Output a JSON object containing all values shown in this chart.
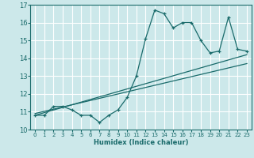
{
  "title": "",
  "xlabel": "Humidex (Indice chaleur)",
  "ylabel": "",
  "bg_color": "#cce8ea",
  "line_color": "#1a6b6b",
  "grid_color": "#ffffff",
  "xlim": [
    -0.5,
    23.5
  ],
  "ylim": [
    10,
    17
  ],
  "yticks": [
    10,
    11,
    12,
    13,
    14,
    15,
    16,
    17
  ],
  "xticks": [
    0,
    1,
    2,
    3,
    4,
    5,
    6,
    7,
    8,
    9,
    10,
    11,
    12,
    13,
    14,
    15,
    16,
    17,
    18,
    19,
    20,
    21,
    22,
    23
  ],
  "main_x": [
    0,
    1,
    2,
    3,
    4,
    5,
    6,
    7,
    8,
    9,
    10,
    11,
    12,
    13,
    14,
    15,
    16,
    17,
    18,
    19,
    20,
    21,
    22,
    23
  ],
  "main_y": [
    10.8,
    10.8,
    11.3,
    11.3,
    11.1,
    10.8,
    10.8,
    10.4,
    10.8,
    11.1,
    11.8,
    13.0,
    15.1,
    16.7,
    16.5,
    15.7,
    16.0,
    16.0,
    15.0,
    14.3,
    14.4,
    16.3,
    14.5,
    14.4
  ],
  "trend1_x": [
    0,
    23
  ],
  "trend1_y": [
    10.8,
    14.2
  ],
  "trend2_x": [
    0,
    23
  ],
  "trend2_y": [
    10.9,
    13.7
  ]
}
